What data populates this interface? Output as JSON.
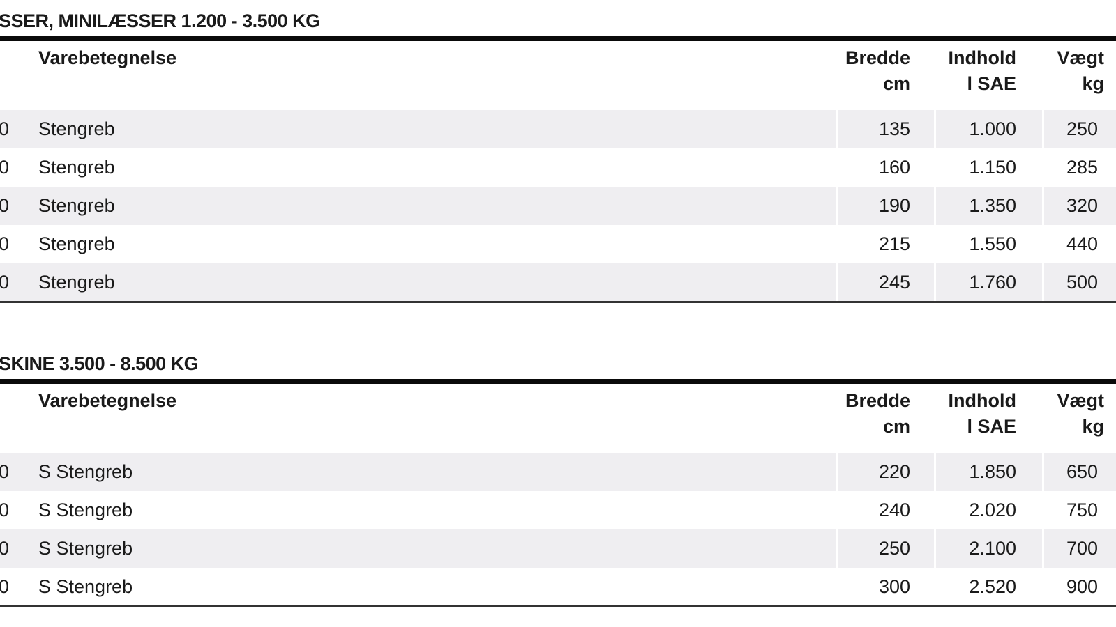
{
  "sections": [
    {
      "title": "SSER, MINILÆSSER 1.200 - 3.500 KG",
      "headers": {
        "name": "Varebetegnelse",
        "bredde": [
          "Bredde",
          "cm"
        ],
        "indhold": [
          "Indhold",
          "l SAE"
        ],
        "vaegt": [
          "Vægt",
          "kg"
        ]
      },
      "rows": [
        {
          "no": "0",
          "name": "Stengreb",
          "bredde": "135",
          "indhold": "1.000",
          "vaegt": "250"
        },
        {
          "no": "0",
          "name": "Stengreb",
          "bredde": "160",
          "indhold": "1.150",
          "vaegt": "285"
        },
        {
          "no": "0",
          "name": "Stengreb",
          "bredde": "190",
          "indhold": "1.350",
          "vaegt": "320"
        },
        {
          "no": "0",
          "name": "Stengreb",
          "bredde": "215",
          "indhold": "1.550",
          "vaegt": "440"
        },
        {
          "no": "0",
          "name": "Stengreb",
          "bredde": "245",
          "indhold": "1.760",
          "vaegt": "500"
        }
      ]
    },
    {
      "title": "SKINE 3.500  - 8.500 KG",
      "headers": {
        "name": "Varebetegnelse",
        "bredde": [
          "Bredde",
          "cm"
        ],
        "indhold": [
          "Indhold",
          "l SAE"
        ],
        "vaegt": [
          "Vægt",
          "kg"
        ]
      },
      "rows": [
        {
          "no": "0",
          "name": "S Stengreb",
          "bredde": "220",
          "indhold": "1.850",
          "vaegt": "650"
        },
        {
          "no": "0",
          "name": "S Stengreb",
          "bredde": "240",
          "indhold": "2.020",
          "vaegt": "750"
        },
        {
          "no": "0",
          "name": "S Stengreb",
          "bredde": "250",
          "indhold": "2.100",
          "vaegt": "700"
        },
        {
          "no": "0",
          "name": "S Stengreb",
          "bredde": "300",
          "indhold": "2.520",
          "vaegt": "900"
        }
      ]
    }
  ]
}
